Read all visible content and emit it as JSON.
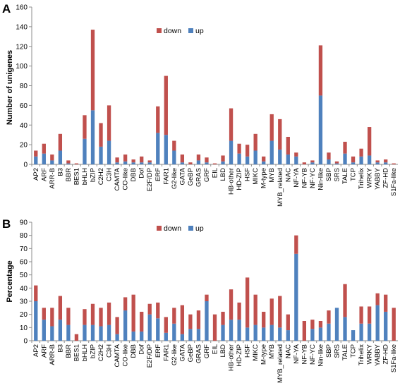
{
  "chart_data": [
    {
      "type": "bar",
      "stacked": true,
      "panel": "A",
      "ylabel": "Number of unigenes",
      "ylim": [
        0,
        160
      ],
      "yticks": [
        0,
        20,
        40,
        60,
        80,
        100,
        120,
        140,
        160
      ],
      "legend_position": "top-center",
      "categories": [
        "AP2",
        "ARF",
        "ARR-B",
        "B3",
        "BBR",
        "BES1",
        "bHLH",
        "bZIP",
        "C2H2",
        "C3H",
        "CAMTA",
        "CO-like",
        "DBB",
        "Dof",
        "E2F/DP",
        "ERF",
        "FAR1",
        "G2-like",
        "GATA",
        "GeBP",
        "GRAS",
        "GRF",
        "EIL",
        "LBD",
        "HB-other",
        "HD-ZIP",
        "HSF",
        "MIKC",
        "M-type",
        "MYB",
        "MYB_related",
        "NAC",
        "NF-YA",
        "NF-YB",
        "NF-YC",
        "Nin-like",
        "SBP",
        "SRS",
        "TALE",
        "TCP",
        "Trihelix",
        "WRKY",
        "YABBY",
        "ZF-HD",
        "S1Fa-like"
      ],
      "series": [
        {
          "name": "up",
          "color": "#4f81bd",
          "values": [
            8,
            11,
            4,
            14,
            1,
            0,
            26,
            55,
            18,
            24,
            2,
            3,
            2,
            2,
            2,
            32,
            30,
            14,
            2,
            0,
            4,
            2,
            0,
            3,
            24,
            11,
            8,
            14,
            3,
            24,
            15,
            10,
            8,
            0,
            2,
            70,
            5,
            1,
            11,
            2,
            8,
            9,
            2,
            2,
            0
          ]
        },
        {
          "name": "down",
          "color": "#c0504d",
          "values": [
            6,
            10,
            6,
            17,
            3,
            1,
            24,
            82,
            24,
            36,
            5,
            7,
            3,
            6,
            2,
            27,
            60,
            10,
            8,
            2,
            6,
            5,
            1,
            6,
            33,
            10,
            12,
            17,
            5,
            27,
            31,
            18,
            4,
            2,
            2,
            51,
            7,
            2,
            12,
            6,
            8,
            29,
            2,
            3,
            1
          ]
        }
      ]
    },
    {
      "type": "bar",
      "stacked": true,
      "panel": "B",
      "ylabel": "Percentage",
      "ylim": [
        0,
        90
      ],
      "yticks": [
        0,
        10,
        20,
        30,
        40,
        50,
        60,
        70,
        80,
        90
      ],
      "legend_position": "top-center",
      "categories": [
        "AP2",
        "ARF",
        "ARR-B",
        "B3",
        "BBR",
        "BES1",
        "bHLH",
        "bZIP",
        "C2H2",
        "C3H",
        "CAMTA",
        "CO-like",
        "DBB",
        "Dof",
        "E2F/DP",
        "ERF",
        "FAR1",
        "G2-like",
        "GATA",
        "GeBP",
        "GRAS",
        "GRF",
        "EIL",
        "LBD",
        "HB-other",
        "HD-ZIP",
        "HSF",
        "MIKC",
        "M-type",
        "MYB",
        "MYB_related",
        "NAC",
        "NF-YA",
        "NF-YB",
        "NF-YC",
        "Nin-like",
        "SBP",
        "SRS",
        "TALE",
        "TCP",
        "Trihelix",
        "WRKY",
        "YABBY",
        "ZF-HD",
        "S1Fa-like"
      ],
      "series": [
        {
          "name": "up",
          "color": "#4f81bd",
          "values": [
            30,
            16,
            11,
            16,
            12,
            0,
            12,
            12,
            11,
            12,
            5,
            23,
            7,
            7,
            20,
            17,
            6,
            13,
            5,
            9,
            9,
            30,
            0,
            12,
            16,
            16,
            10,
            12,
            10,
            12,
            10,
            8,
            66,
            0,
            9,
            10,
            13,
            25,
            18,
            8,
            13,
            13,
            27,
            22,
            0
          ]
        },
        {
          "name": "down",
          "color": "#c0504d",
          "values": [
            12,
            9,
            14,
            18,
            13,
            5,
            12,
            16,
            14,
            17,
            13,
            10,
            28,
            15,
            8,
            12,
            12,
            12,
            22,
            11,
            14,
            5,
            20,
            10,
            23,
            13,
            38,
            23,
            12,
            20,
            24,
            12,
            14,
            15,
            7,
            5,
            10,
            0,
            25,
            0,
            13,
            13,
            9,
            13,
            25
          ]
        }
      ]
    }
  ]
}
